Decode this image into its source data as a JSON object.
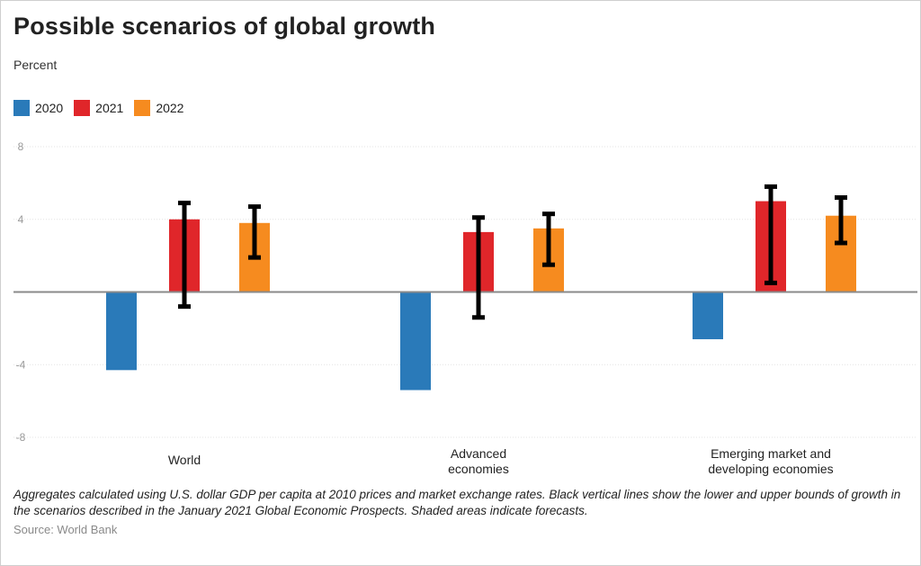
{
  "title": "Possible scenarios of global growth",
  "subtitle": "Percent",
  "legend": [
    {
      "label": "2020",
      "color": "#2a7ab9"
    },
    {
      "label": "2021",
      "color": "#e0262a"
    },
    {
      "label": "2022",
      "color": "#f68b1f"
    }
  ],
  "note": "Aggregates calculated using U.S. dollar GDP per capita at 2010 prices and market exchange rates. Black vertical lines show the lower and upper bounds of growth in the scenarios described in the January 2021 Global Economic Prospects. Shaded areas indicate forecasts.",
  "source": "Source: World Bank",
  "chart_data": {
    "type": "bar",
    "categories": [
      [
        "World"
      ],
      [
        "Advanced",
        "economies"
      ],
      [
        "Emerging market and",
        "developing economies"
      ]
    ],
    "series": [
      {
        "name": "2020",
        "color": "#2a7ab9",
        "values": [
          -4.3,
          -5.4,
          -2.6
        ],
        "error_low": null,
        "error_high": null
      },
      {
        "name": "2021",
        "color": "#e0262a",
        "values": [
          4.0,
          3.3,
          5.0
        ],
        "error_low": [
          -0.8,
          -1.4,
          0.5
        ],
        "error_high": [
          4.9,
          4.1,
          5.8
        ]
      },
      {
        "name": "2022",
        "color": "#f68b1f",
        "values": [
          3.8,
          3.5,
          4.2
        ],
        "error_low": [
          1.9,
          1.5,
          2.7
        ],
        "error_high": [
          4.7,
          4.3,
          5.2
        ]
      }
    ],
    "ylim": [
      -8,
      8
    ],
    "yticks": [
      "8",
      "4",
      "",
      "-4",
      "-8"
    ],
    "ytick_values": [
      8,
      4,
      0,
      -4,
      -8
    ],
    "grid": true,
    "legend_position": "top-left"
  }
}
